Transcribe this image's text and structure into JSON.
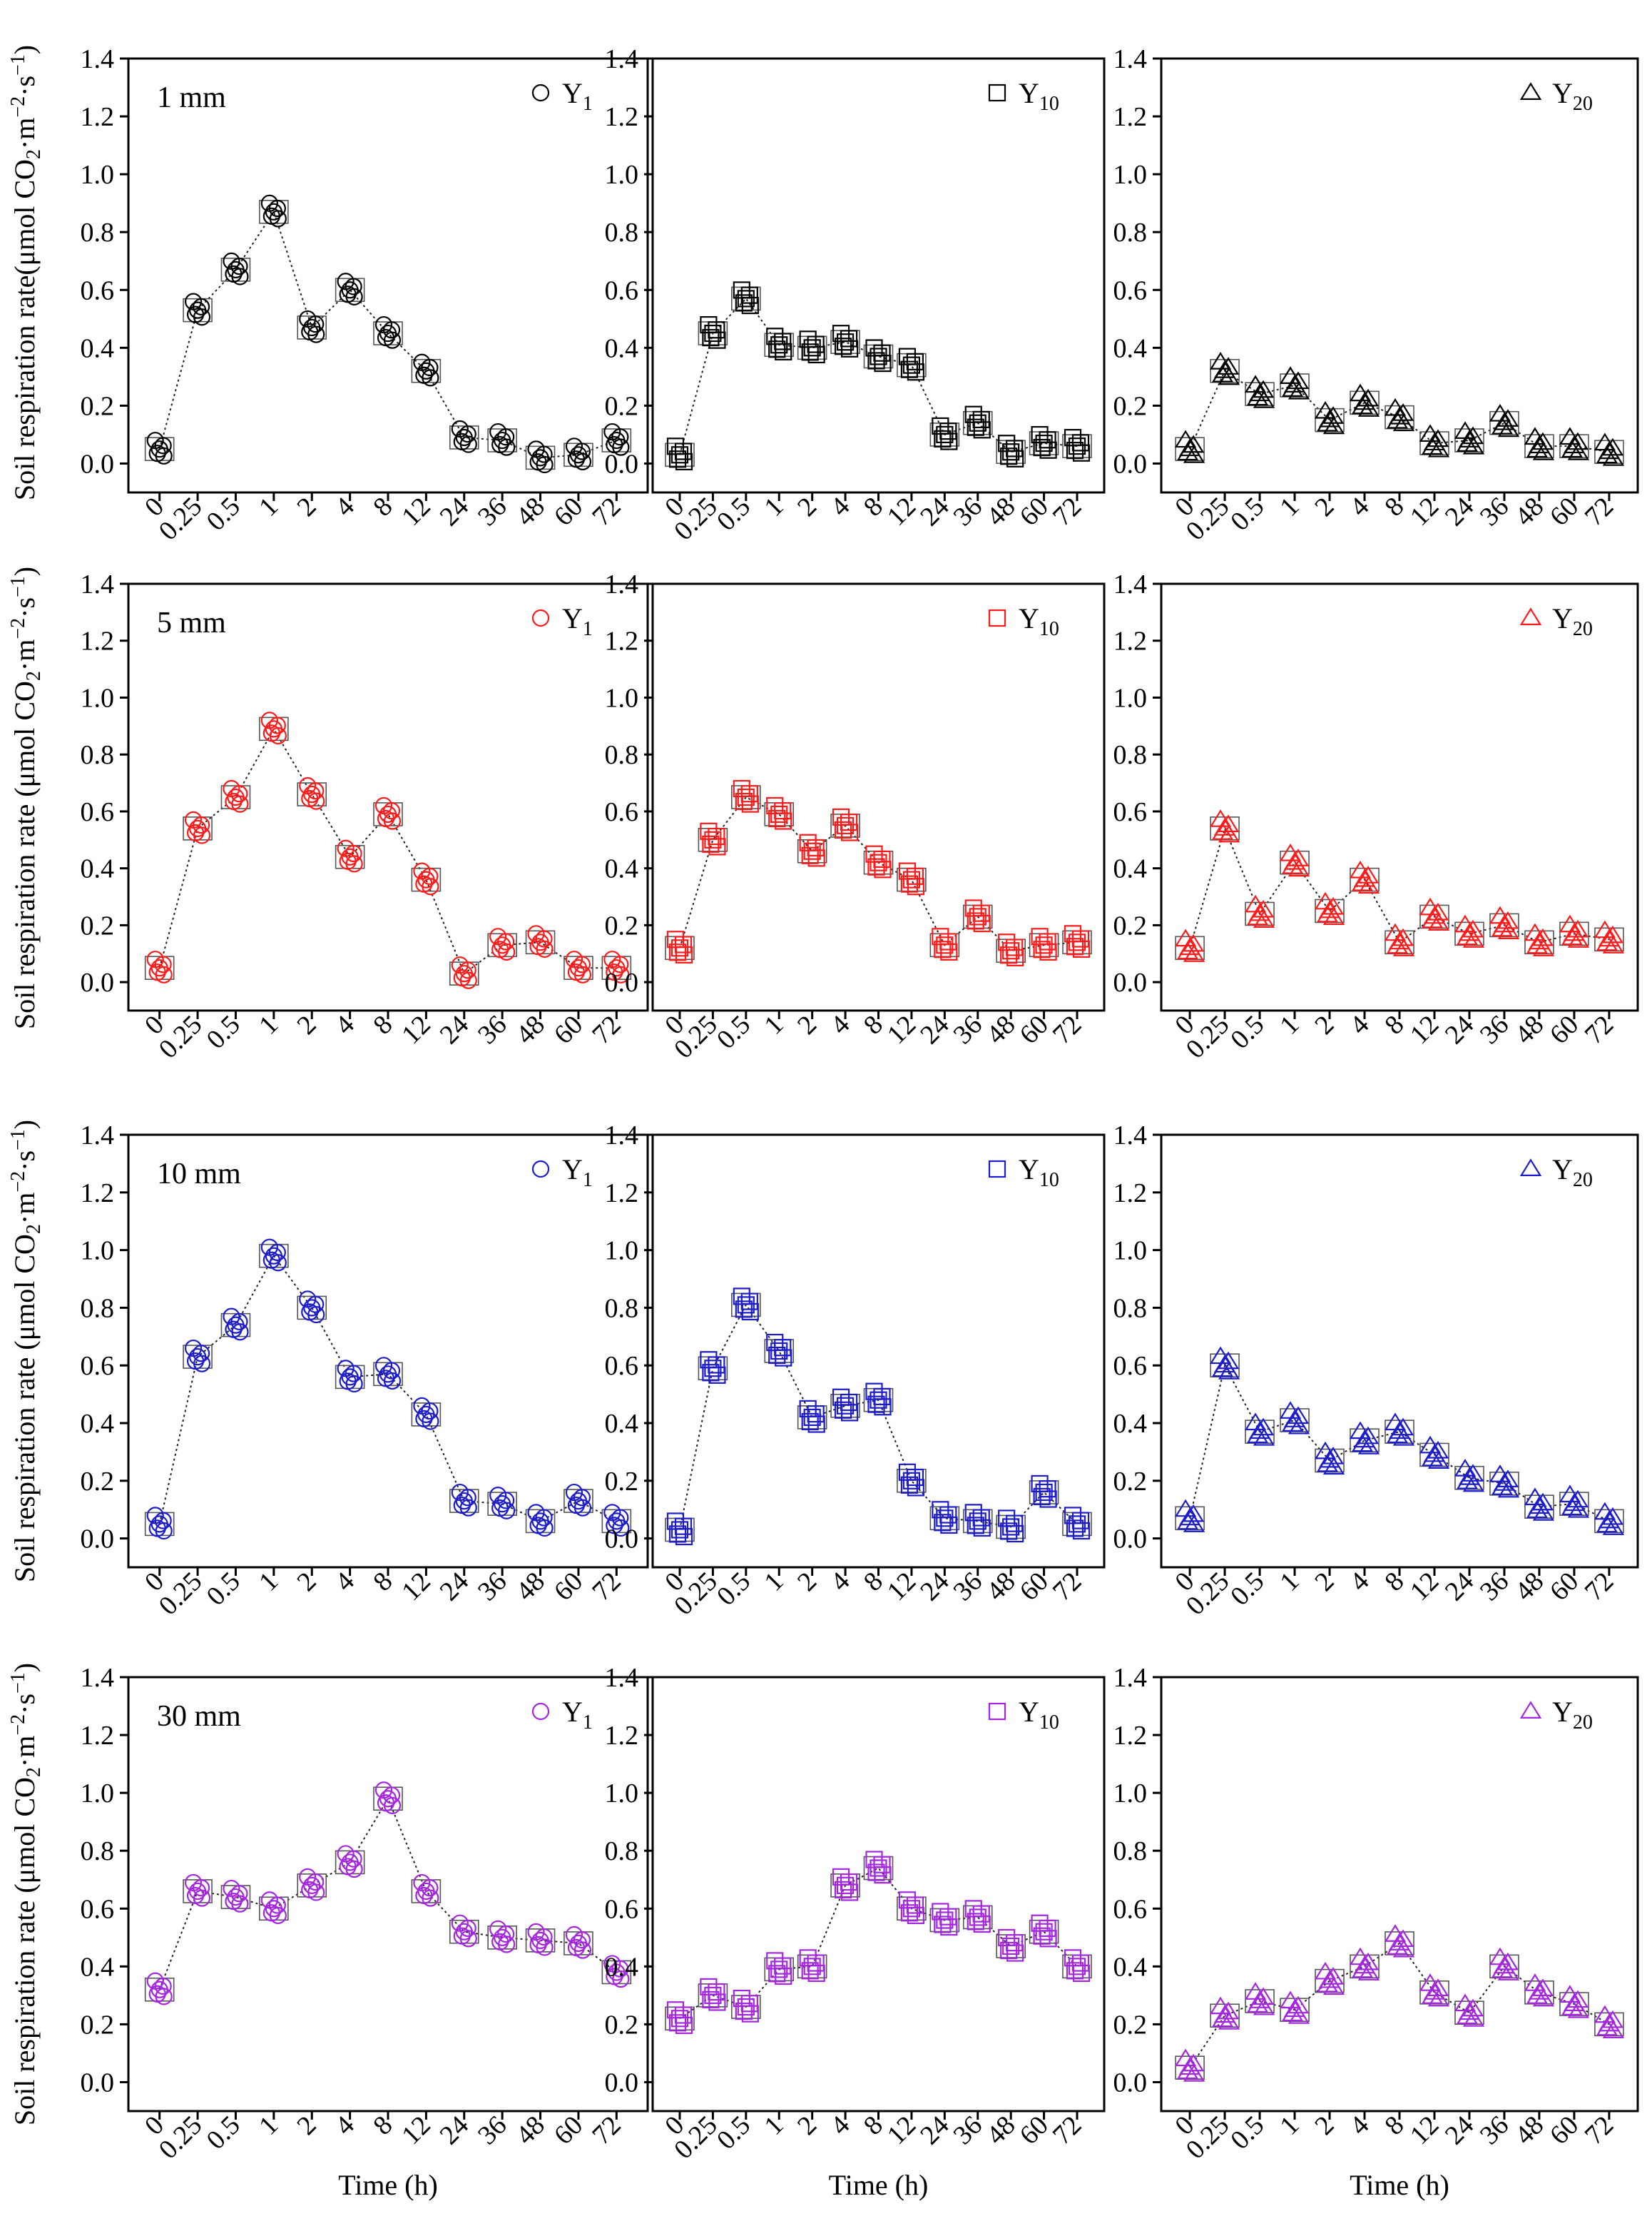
{
  "figure": {
    "ylabel_main": "Soil respiration rate(μmol CO",
    "ylabel_alt": "Soil respiration rate (μmol CO",
    "ylabel_sub2": "2",
    "ylabel_mid": "·m",
    "ylabel_sup1": "−2",
    "ylabel_mid2": "·s",
    "ylabel_sup2": "−1",
    "ylabel_end": ")",
    "xlabel": "Time (h)"
  },
  "chart_data": [
    {
      "type": "line",
      "row_label": "1 mm",
      "legend": "Y",
      "legend_sub": "1",
      "marker": "circle",
      "color": "#000000",
      "categories": [
        "0",
        "0.25",
        "0.5",
        "1",
        "2",
        "4",
        "8",
        "12",
        "24",
        "36",
        "48",
        "60",
        "72"
      ],
      "values": [
        0.05,
        0.53,
        0.67,
        0.87,
        0.47,
        0.6,
        0.45,
        0.32,
        0.09,
        0.08,
        0.02,
        0.03,
        0.08
      ],
      "ylim": [
        -0.1,
        1.4
      ],
      "yticks": [
        "0.0",
        "0.2",
        "0.4",
        "0.6",
        "0.8",
        "1.0",
        "1.2",
        "1.4"
      ]
    },
    {
      "type": "line",
      "row_label": "",
      "legend": "Y",
      "legend_sub": "10",
      "marker": "square",
      "color": "#000000",
      "categories": [
        "0",
        "0.25",
        "0.5",
        "1",
        "2",
        "4",
        "8",
        "12",
        "24",
        "36",
        "48",
        "60",
        "72"
      ],
      "values": [
        0.03,
        0.45,
        0.57,
        0.41,
        0.4,
        0.42,
        0.37,
        0.34,
        0.1,
        0.14,
        0.04,
        0.07,
        0.06
      ],
      "ylim": [
        -0.1,
        1.4
      ],
      "yticks": [
        "0.0",
        "0.2",
        "0.4",
        "0.6",
        "0.8",
        "1.0",
        "1.2",
        "1.4"
      ]
    },
    {
      "type": "line",
      "row_label": "",
      "legend": "Y",
      "legend_sub": "20",
      "marker": "triangle",
      "color": "#000000",
      "categories": [
        "0",
        "0.25",
        "0.5",
        "1",
        "2",
        "4",
        "8",
        "12",
        "24",
        "36",
        "48",
        "60",
        "72"
      ],
      "values": [
        0.05,
        0.32,
        0.24,
        0.27,
        0.15,
        0.21,
        0.16,
        0.07,
        0.08,
        0.14,
        0.06,
        0.06,
        0.04
      ],
      "ylim": [
        -0.1,
        1.4
      ],
      "yticks": [
        "0.0",
        "0.2",
        "0.4",
        "0.6",
        "0.8",
        "1.0",
        "1.2",
        "1.4"
      ]
    },
    {
      "type": "line",
      "row_label": "5 mm",
      "legend": "Y",
      "legend_sub": "1",
      "marker": "circle",
      "color": "#ff1a1a",
      "categories": [
        "0",
        "0.25",
        "0.5",
        "1",
        "2",
        "4",
        "8",
        "12",
        "24",
        "36",
        "48",
        "60",
        "72"
      ],
      "values": [
        0.05,
        0.54,
        0.65,
        0.89,
        0.66,
        0.44,
        0.59,
        0.36,
        0.03,
        0.13,
        0.14,
        0.05,
        0.05
      ],
      "ylim": [
        -0.1,
        1.4
      ],
      "yticks": [
        "0.0",
        "0.2",
        "0.4",
        "0.6",
        "0.8",
        "1.0",
        "1.2",
        "1.4"
      ]
    },
    {
      "type": "line",
      "row_label": "",
      "legend": "Y",
      "legend_sub": "10",
      "marker": "square",
      "color": "#ff1a1a",
      "categories": [
        "0",
        "0.25",
        "0.5",
        "1",
        "2",
        "4",
        "8",
        "12",
        "24",
        "36",
        "48",
        "60",
        "72"
      ],
      "values": [
        0.12,
        0.5,
        0.65,
        0.59,
        0.46,
        0.55,
        0.42,
        0.36,
        0.13,
        0.23,
        0.11,
        0.13,
        0.14
      ],
      "ylim": [
        -0.1,
        1.4
      ],
      "yticks": [
        "0.0",
        "0.2",
        "0.4",
        "0.6",
        "0.8",
        "1.0",
        "1.2",
        "1.4"
      ]
    },
    {
      "type": "line",
      "row_label": "",
      "legend": "Y",
      "legend_sub": "20",
      "marker": "triangle",
      "color": "#ff1a1a",
      "categories": [
        "0",
        "0.25",
        "0.5",
        "1",
        "2",
        "4",
        "8",
        "12",
        "24",
        "36",
        "48",
        "60",
        "72"
      ],
      "values": [
        0.12,
        0.54,
        0.24,
        0.42,
        0.25,
        0.36,
        0.14,
        0.23,
        0.17,
        0.2,
        0.14,
        0.17,
        0.15
      ],
      "ylim": [
        -0.1,
        1.4
      ],
      "yticks": [
        "0.0",
        "0.2",
        "0.4",
        "0.6",
        "0.8",
        "1.0",
        "1.2",
        "1.4"
      ]
    },
    {
      "type": "line",
      "row_label": "10 mm",
      "legend": "Y",
      "legend_sub": "1",
      "marker": "circle",
      "color": "#1c1ccc",
      "categories": [
        "0",
        "0.25",
        "0.5",
        "1",
        "2",
        "4",
        "8",
        "12",
        "24",
        "36",
        "48",
        "60",
        "72"
      ],
      "values": [
        0.05,
        0.63,
        0.74,
        0.98,
        0.8,
        0.56,
        0.57,
        0.43,
        0.13,
        0.12,
        0.06,
        0.13,
        0.06
      ],
      "ylim": [
        -0.1,
        1.4
      ],
      "yticks": [
        "0.0",
        "0.2",
        "0.4",
        "0.6",
        "0.8",
        "1.0",
        "1.2",
        "1.4"
      ]
    },
    {
      "type": "line",
      "row_label": "",
      "legend": "Y",
      "legend_sub": "10",
      "marker": "square",
      "color": "#1c1ccc",
      "categories": [
        "0",
        "0.25",
        "0.5",
        "1",
        "2",
        "4",
        "8",
        "12",
        "24",
        "36",
        "48",
        "60",
        "72"
      ],
      "values": [
        0.03,
        0.59,
        0.81,
        0.65,
        0.42,
        0.46,
        0.48,
        0.2,
        0.07,
        0.06,
        0.04,
        0.16,
        0.05
      ],
      "ylim": [
        -0.1,
        1.4
      ],
      "yticks": [
        "0.0",
        "0.2",
        "0.4",
        "0.6",
        "0.8",
        "1.0",
        "1.2",
        "1.4"
      ]
    },
    {
      "type": "line",
      "row_label": "",
      "legend": "Y",
      "legend_sub": "20",
      "marker": "triangle",
      "color": "#1c1ccc",
      "categories": [
        "0",
        "0.25",
        "0.5",
        "1",
        "2",
        "4",
        "8",
        "12",
        "24",
        "36",
        "48",
        "60",
        "72"
      ],
      "values": [
        0.07,
        0.6,
        0.37,
        0.41,
        0.27,
        0.34,
        0.37,
        0.29,
        0.21,
        0.19,
        0.11,
        0.12,
        0.06
      ],
      "ylim": [
        -0.1,
        1.4
      ],
      "yticks": [
        "0.0",
        "0.2",
        "0.4",
        "0.6",
        "0.8",
        "1.0",
        "1.2",
        "1.4"
      ]
    },
    {
      "type": "line",
      "row_label": "30 mm",
      "legend": "Y",
      "legend_sub": "1",
      "marker": "circle",
      "color": "#a526e0",
      "categories": [
        "0",
        "0.25",
        "0.5",
        "1",
        "2",
        "4",
        "8",
        "12",
        "24",
        "36",
        "48",
        "60",
        "72"
      ],
      "values": [
        0.32,
        0.66,
        0.64,
        0.6,
        0.68,
        0.76,
        0.98,
        0.66,
        0.52,
        0.5,
        0.49,
        0.48,
        0.38
      ],
      "ylim": [
        -0.1,
        1.4
      ],
      "yticks": [
        "0.0",
        "0.2",
        "0.4",
        "0.6",
        "0.8",
        "1.0",
        "1.2",
        "1.4"
      ]
    },
    {
      "type": "line",
      "row_label": "",
      "legend": "Y",
      "legend_sub": "10",
      "marker": "square",
      "color": "#a526e0",
      "categories": [
        "0",
        "0.25",
        "0.5",
        "1",
        "2",
        "4",
        "8",
        "12",
        "24",
        "36",
        "48",
        "60",
        "72"
      ],
      "values": [
        0.22,
        0.3,
        0.26,
        0.39,
        0.4,
        0.68,
        0.74,
        0.6,
        0.56,
        0.57,
        0.47,
        0.52,
        0.4
      ],
      "ylim": [
        -0.1,
        1.4
      ],
      "yticks": [
        "0.0",
        "0.2",
        "0.4",
        "0.6",
        "0.8",
        "1.0",
        "1.2",
        "1.4"
      ]
    },
    {
      "type": "line",
      "row_label": "",
      "legend": "Y",
      "legend_sub": "20",
      "marker": "triangle",
      "color": "#a526e0",
      "categories": [
        "0",
        "0.25",
        "0.5",
        "1",
        "2",
        "4",
        "8",
        "12",
        "24",
        "36",
        "48",
        "60",
        "72"
      ],
      "values": [
        0.05,
        0.23,
        0.28,
        0.25,
        0.35,
        0.4,
        0.48,
        0.31,
        0.24,
        0.4,
        0.31,
        0.27,
        0.2
      ],
      "ylim": [
        -0.1,
        1.4
      ],
      "yticks": [
        "0.0",
        "0.2",
        "0.4",
        "0.6",
        "0.8",
        "1.0",
        "1.2",
        "1.4"
      ]
    }
  ]
}
